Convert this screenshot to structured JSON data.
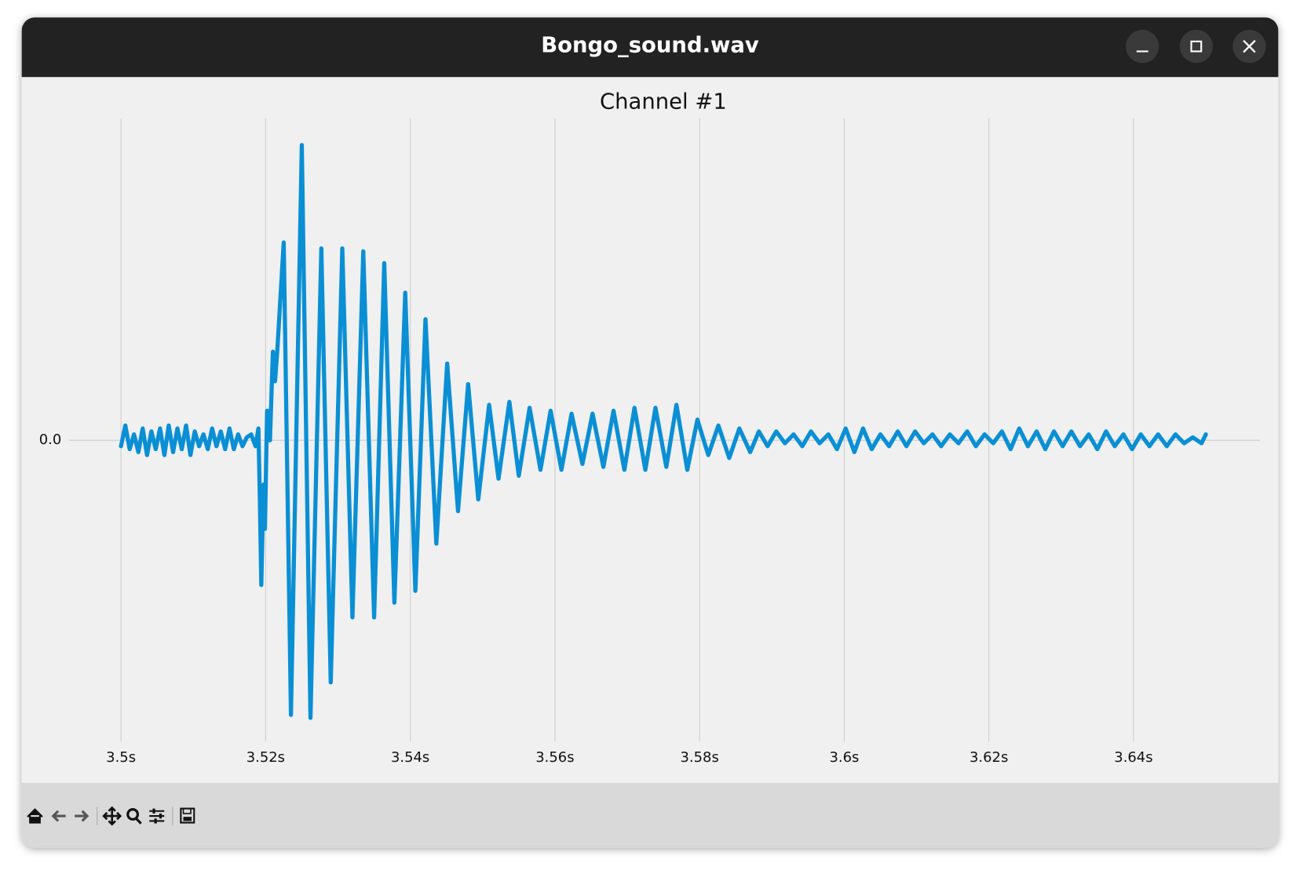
{
  "window": {
    "title": "Bongo_sound.wav"
  },
  "chart_data": {
    "type": "line",
    "title": "Channel #1",
    "color": "#0a8fd4",
    "grid": true,
    "xlim": [
      3.4928,
      3.6575
    ],
    "ylim": [
      -1.02,
      1.09
    ],
    "xticks": [
      {
        "value": 3.5,
        "label": "3.5s"
      },
      {
        "value": 3.52,
        "label": "3.52s"
      },
      {
        "value": 3.54,
        "label": "3.54s"
      },
      {
        "value": 3.56,
        "label": "3.56s"
      },
      {
        "value": 3.58,
        "label": "3.58s"
      },
      {
        "value": 3.6,
        "label": "3.6s"
      },
      {
        "value": 3.62,
        "label": "3.62s"
      },
      {
        "value": 3.64,
        "label": "3.64s"
      }
    ],
    "yticks": [
      {
        "value": 0,
        "label": "0.0"
      }
    ],
    "x": [
      3.5,
      3.5006,
      3.5012,
      3.5018,
      3.5024,
      3.503,
      3.5036,
      3.5042,
      3.5048,
      3.5054,
      3.506,
      3.5066,
      3.5072,
      3.5078,
      3.5084,
      3.509,
      3.5096,
      3.5102,
      3.5108,
      3.5114,
      3.512,
      3.5126,
      3.5132,
      3.5138,
      3.5144,
      3.515,
      3.5156,
      3.5162,
      3.5168,
      3.5174,
      3.518,
      3.5186,
      3.519,
      3.5192,
      3.5194,
      3.5197,
      3.5199,
      3.5202,
      3.5206,
      3.521,
      3.5213,
      3.5216,
      3.5225,
      3.5235,
      3.525,
      3.5262,
      3.5277,
      3.529,
      3.5306,
      3.532,
      3.5335,
      3.535,
      3.5364,
      3.5378,
      3.5393,
      3.5407,
      3.5421,
      3.5436,
      3.5451,
      3.5466,
      3.548,
      3.5494,
      3.5509,
      3.5522,
      3.5537,
      3.555,
      3.5565,
      3.558,
      3.5594,
      3.5609,
      3.5623,
      3.5638,
      3.5652,
      3.5667,
      3.5681,
      3.5696,
      3.571,
      3.5725,
      3.5739,
      3.5754,
      3.5768,
      3.5783,
      3.5797,
      3.5812,
      3.5826,
      3.5841,
      3.5855,
      3.587,
      3.5882,
      3.5894,
      3.5906,
      3.5918,
      3.593,
      3.5942,
      3.5954,
      3.5966,
      3.5978,
      3.599,
      3.6002,
      3.6014,
      3.6026,
      3.6038,
      3.605,
      3.6062,
      3.6074,
      3.6086,
      3.6098,
      3.611,
      3.6122,
      3.6134,
      3.6146,
      3.6158,
      3.617,
      3.6182,
      3.6194,
      3.6206,
      3.6218,
      3.623,
      3.6242,
      3.6254,
      3.6266,
      3.6278,
      3.629,
      3.6302,
      3.6314,
      3.6326,
      3.6338,
      3.635,
      3.6362,
      3.6374,
      3.6386,
      3.6398,
      3.641,
      3.6422,
      3.6434,
      3.6446,
      3.6458,
      3.647,
      3.6482,
      3.6494,
      3.65
    ],
    "values": [
      -0.02,
      0.05,
      -0.03,
      0.02,
      -0.04,
      0.04,
      -0.05,
      0.03,
      -0.03,
      0.04,
      -0.05,
      0.05,
      -0.04,
      0.04,
      -0.03,
      0.05,
      -0.05,
      0.03,
      -0.02,
      0.02,
      -0.03,
      0.04,
      -0.02,
      0.03,
      -0.03,
      0.04,
      -0.03,
      0.02,
      -0.02,
      0.01,
      0.02,
      -0.02,
      0.04,
      -0.2,
      -0.49,
      -0.15,
      -0.3,
      0.1,
      0.0,
      0.3,
      0.2,
      0.3,
      0.67,
      -0.93,
      1.0,
      -0.94,
      0.65,
      -0.82,
      0.65,
      -0.6,
      0.64,
      -0.6,
      0.6,
      -0.55,
      0.5,
      -0.51,
      0.41,
      -0.35,
      0.26,
      -0.24,
      0.19,
      -0.2,
      0.12,
      -0.13,
      0.13,
      -0.12,
      0.11,
      -0.1,
      0.1,
      -0.1,
      0.09,
      -0.08,
      0.09,
      -0.09,
      0.1,
      -0.1,
      0.11,
      -0.1,
      0.11,
      -0.09,
      0.12,
      -0.1,
      0.07,
      -0.05,
      0.05,
      -0.06,
      0.04,
      -0.04,
      0.03,
      -0.02,
      0.03,
      -0.01,
      0.02,
      -0.02,
      0.03,
      -0.01,
      0.02,
      -0.03,
      0.04,
      -0.04,
      0.04,
      -0.03,
      0.02,
      -0.02,
      0.03,
      -0.02,
      0.03,
      -0.01,
      0.02,
      -0.02,
      0.02,
      -0.01,
      0.03,
      -0.02,
      0.02,
      -0.01,
      0.03,
      -0.03,
      0.04,
      -0.02,
      0.03,
      -0.03,
      0.03,
      -0.02,
      0.03,
      -0.02,
      0.02,
      -0.03,
      0.03,
      -0.02,
      0.02,
      -0.03,
      0.02,
      -0.02,
      0.02,
      -0.02,
      0.02,
      -0.01,
      0.01,
      -0.01,
      0.02
    ]
  }
}
